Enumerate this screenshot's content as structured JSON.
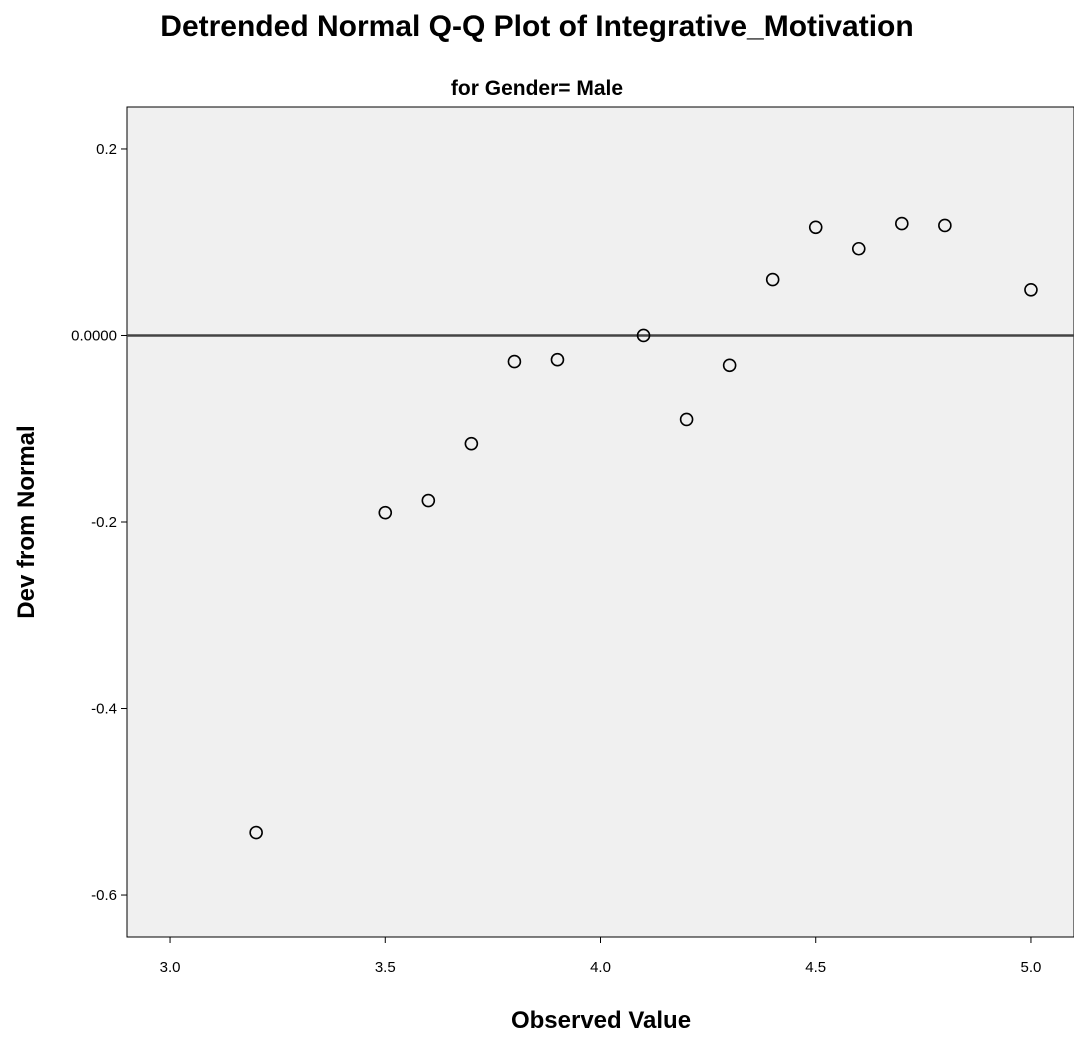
{
  "chart_data": {
    "type": "scatter",
    "title": "Detrended Normal Q-Q Plot of Integrative_Motivation",
    "subtitle": "for Gender= Male",
    "xlabel": "Observed Value",
    "ylabel": "Dev from Normal",
    "xlim": [
      2.9,
      5.1
    ],
    "ylim": [
      -0.645,
      0.245
    ],
    "x_ticks": [
      3.0,
      3.5,
      4.0,
      4.5,
      5.0
    ],
    "x_tick_labels": [
      "3.0",
      "3.5",
      "4.0",
      "4.5",
      "5.0"
    ],
    "y_ticks": [
      0.2,
      0.0,
      -0.2,
      -0.4,
      -0.6
    ],
    "y_tick_labels": [
      "0.2",
      "0.0000",
      "-0.2",
      "-0.4",
      "-0.6"
    ],
    "reference_line_y": 0,
    "grid": false,
    "points": [
      {
        "x": 3.2,
        "y": -0.533
      },
      {
        "x": 3.5,
        "y": -0.19
      },
      {
        "x": 3.6,
        "y": -0.177
      },
      {
        "x": 3.7,
        "y": -0.116
      },
      {
        "x": 3.8,
        "y": -0.028
      },
      {
        "x": 3.9,
        "y": -0.026
      },
      {
        "x": 4.1,
        "y": 0.0
      },
      {
        "x": 4.2,
        "y": -0.09
      },
      {
        "x": 4.3,
        "y": -0.032
      },
      {
        "x": 4.4,
        "y": 0.06
      },
      {
        "x": 4.5,
        "y": 0.116
      },
      {
        "x": 4.6,
        "y": 0.093
      },
      {
        "x": 4.7,
        "y": 0.12
      },
      {
        "x": 4.8,
        "y": 0.118
      },
      {
        "x": 5.0,
        "y": 0.049
      }
    ],
    "colors": {
      "plot_background": "#f0f0f0",
      "marker_stroke": "#000000",
      "reference_line": "#444444"
    }
  }
}
